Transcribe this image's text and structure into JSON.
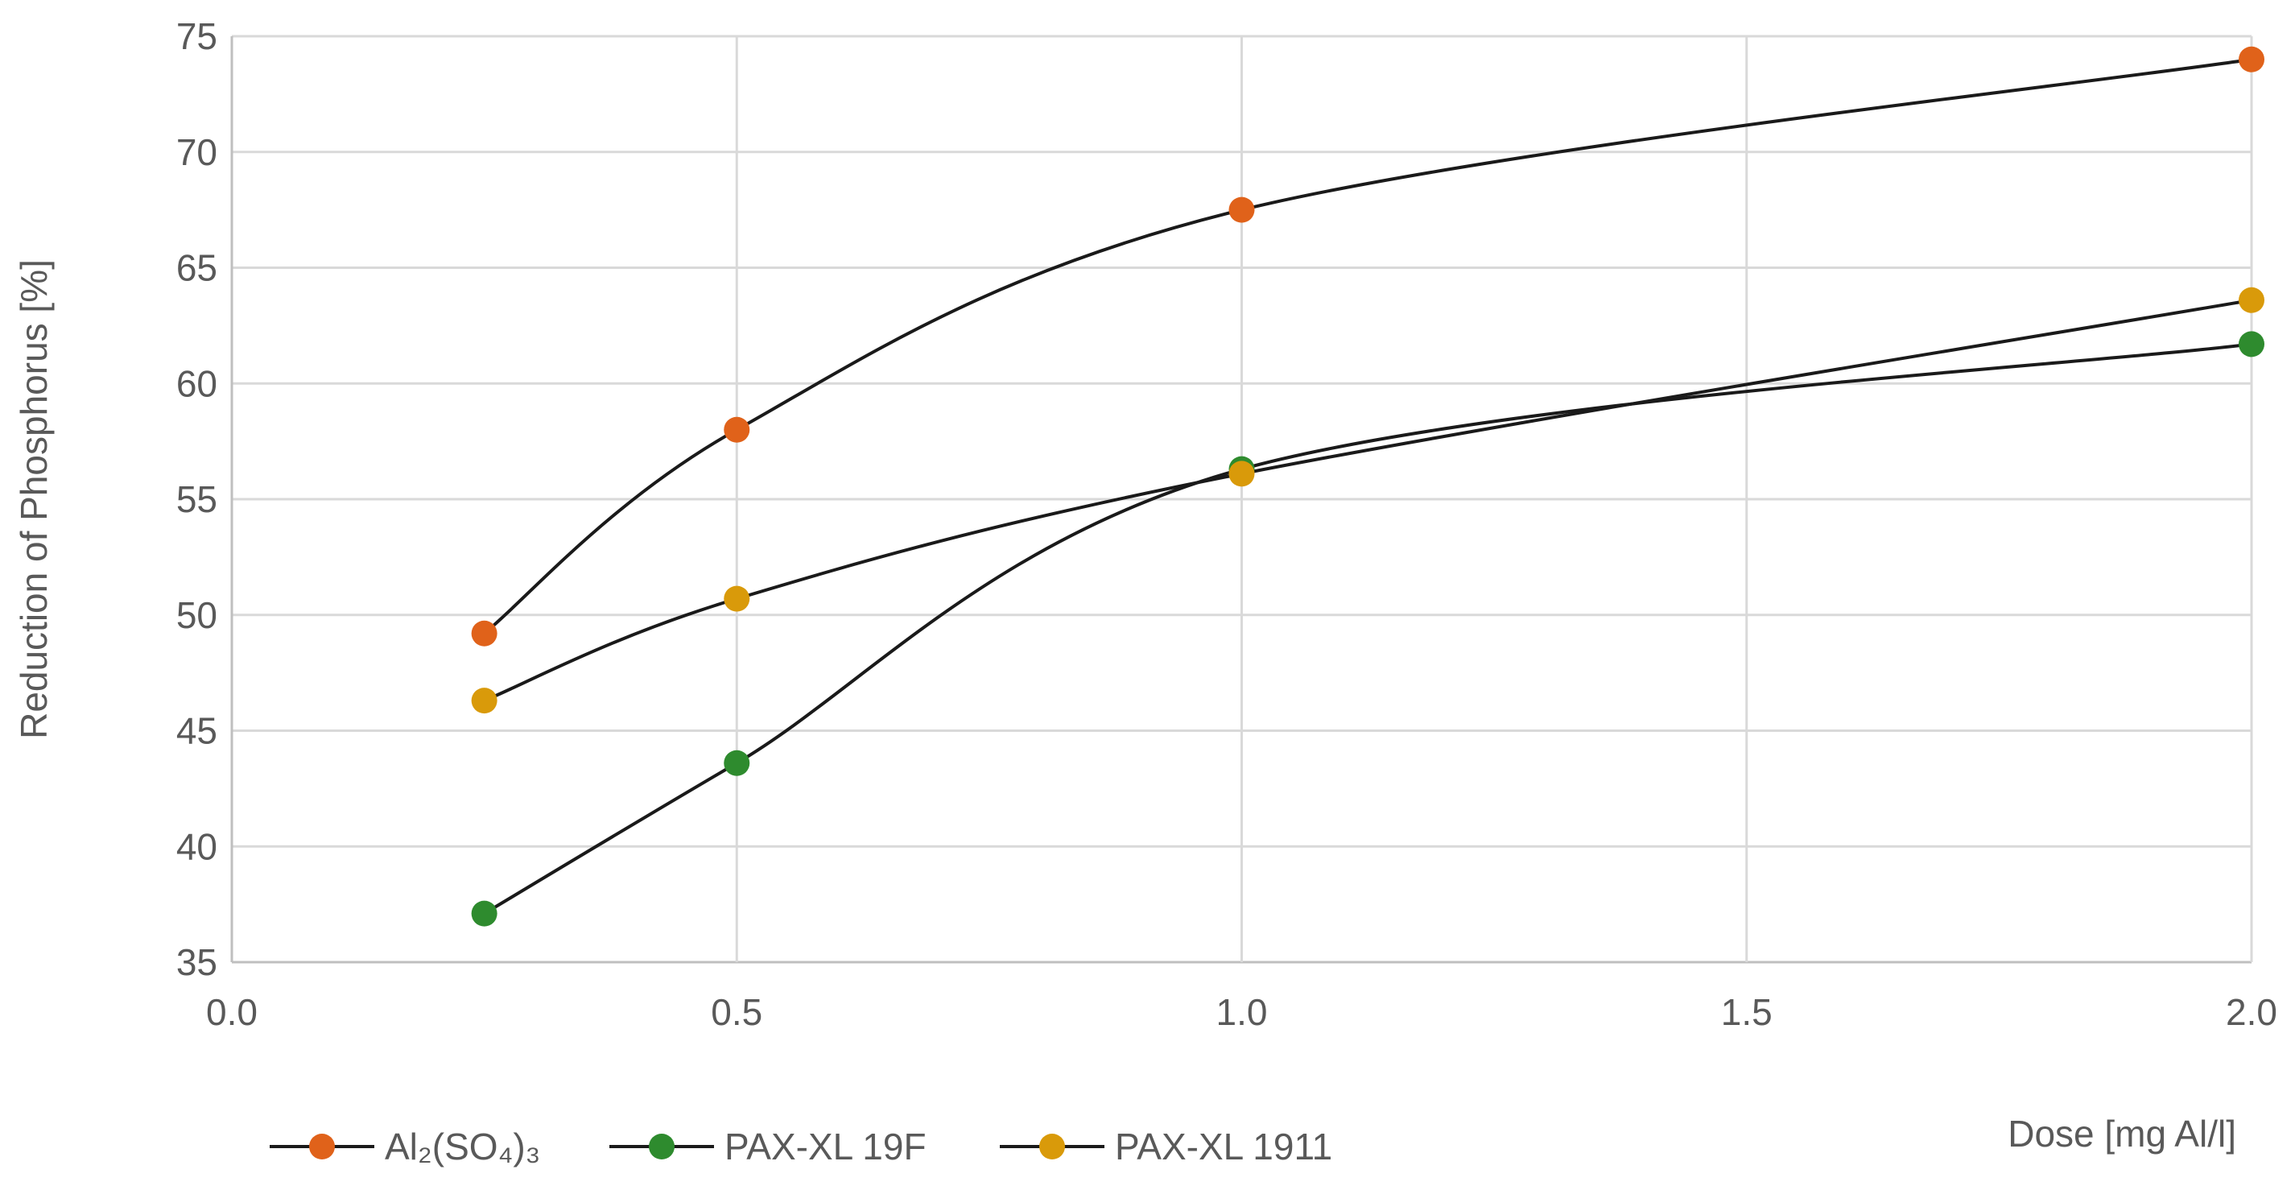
{
  "chart_data": {
    "type": "line",
    "title": "",
    "xlabel": "Dose [mg Al/l]",
    "ylabel": "Reduction of Phosphorus  [%]",
    "xlim": [
      0.0,
      2.0
    ],
    "ylim": [
      35,
      75
    ],
    "x_ticks": [
      "0.0",
      "0.5",
      "1.0",
      "1.5",
      "2.0"
    ],
    "y_ticks": [
      "35",
      "40",
      "45",
      "50",
      "55",
      "60",
      "65",
      "70",
      "75"
    ],
    "grid": true,
    "smooth": true,
    "legend_position": "bottom-left",
    "series": [
      {
        "name": "Al₂(SO₄)₃",
        "color": "#e0621a",
        "x": [
          0.25,
          0.5,
          1.0,
          2.0
        ],
        "y": [
          49.2,
          58.0,
          67.5,
          74.0
        ]
      },
      {
        "name": "PAX-XL 19F",
        "color": "#2e8b2e",
        "x": [
          0.25,
          0.5,
          1.0,
          2.0
        ],
        "y": [
          37.1,
          43.6,
          56.3,
          61.7
        ]
      },
      {
        "name": "PAX-XL 1911",
        "color": "#d99a0a",
        "x": [
          0.25,
          0.5,
          1.0,
          2.0
        ],
        "y": [
          46.3,
          50.7,
          56.1,
          63.6
        ]
      }
    ]
  }
}
